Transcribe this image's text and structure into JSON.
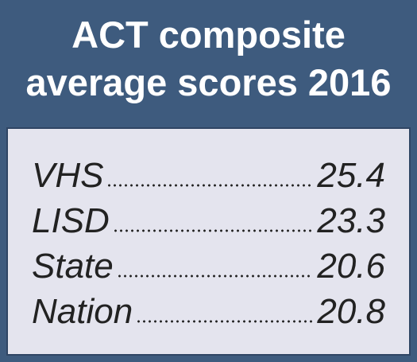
{
  "title_lines": [
    "ACT composite",
    "average scores 2016"
  ],
  "rows": [
    {
      "label": "VHS",
      "score": 25.4
    },
    {
      "label": "LISD",
      "score": 23.3
    },
    {
      "label": "State",
      "score": 20.6
    },
    {
      "label": "Nation",
      "score": 20.8
    }
  ]
}
